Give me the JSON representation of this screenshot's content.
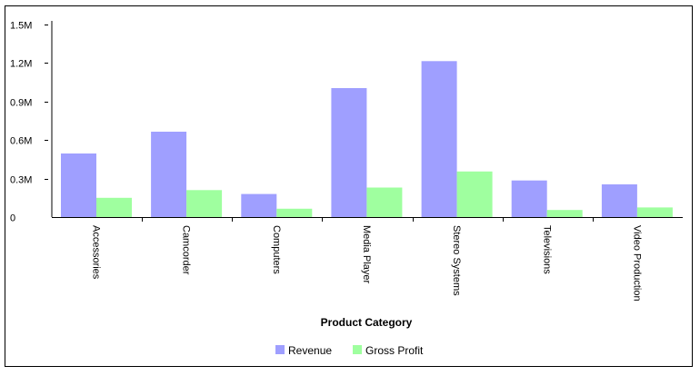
{
  "chart_data": {
    "type": "bar",
    "title": "",
    "xlabel": "Product Category",
    "ylabel": "",
    "categories": [
      "Accessories",
      "Camcorder",
      "Computers",
      "Media Player",
      "Stereo Systems",
      "Televisions",
      "Video Production"
    ],
    "series": [
      {
        "name": "Revenue",
        "color": "#9f9fff",
        "values": [
          495000,
          665000,
          180000,
          1005000,
          1215000,
          285000,
          255000
        ]
      },
      {
        "name": "Gross Profit",
        "color": "#9fff9f",
        "values": [
          150000,
          210000,
          65000,
          230000,
          355000,
          55000,
          75000
        ]
      }
    ],
    "ylim": [
      0,
      1500000
    ],
    "yticks": [
      {
        "value": 0,
        "label": "0"
      },
      {
        "value": 300000,
        "label": "0.3M"
      },
      {
        "value": 600000,
        "label": "0.6M"
      },
      {
        "value": 900000,
        "label": "0.9M"
      },
      {
        "value": 1200000,
        "label": "1.2M"
      },
      {
        "value": 1500000,
        "label": "1.5M"
      }
    ],
    "grid": false,
    "legend_position": "bottom"
  }
}
